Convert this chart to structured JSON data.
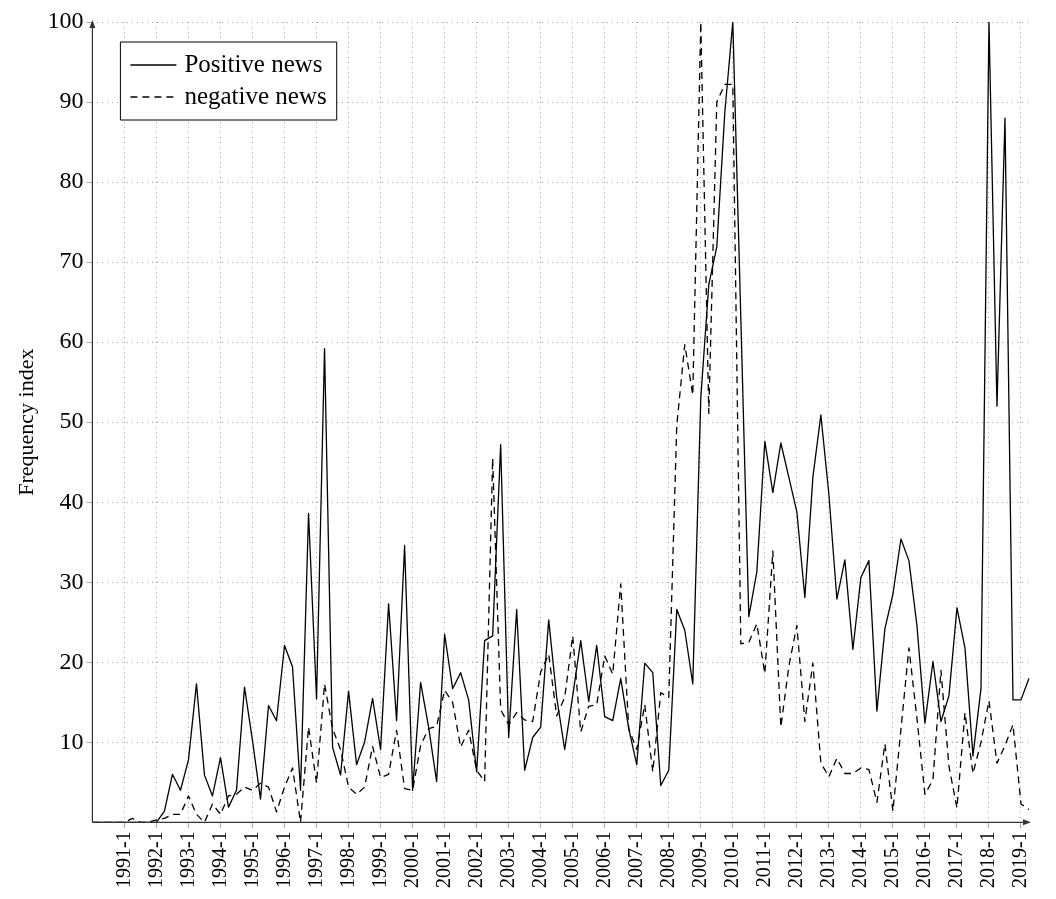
{
  "chart_data": {
    "type": "line",
    "ylabel": "Frequency index",
    "categories": [
      null,
      null,
      null,
      null,
      "1991-1",
      null,
      null,
      null,
      "1992-1",
      null,
      null,
      null,
      "1993-1",
      null,
      null,
      null,
      "1994-1",
      null,
      null,
      null,
      "1995-1",
      null,
      null,
      null,
      "1996-1",
      null,
      null,
      null,
      "1997-1",
      null,
      null,
      null,
      "1998-1",
      null,
      null,
      null,
      "1999-1",
      null,
      null,
      null,
      "2000-1",
      null,
      null,
      null,
      "2001-1",
      null,
      null,
      null,
      "2002-1",
      null,
      null,
      null,
      "2003-1",
      null,
      null,
      null,
      "2004-1",
      null,
      null,
      null,
      "2005-1",
      null,
      null,
      null,
      "2006-1",
      null,
      null,
      null,
      "2007-1",
      null,
      null,
      null,
      "2008-1",
      null,
      null,
      null,
      "2009-1",
      null,
      null,
      null,
      "2010-1",
      null,
      null,
      null,
      "2011-1",
      null,
      null,
      null,
      "2012-1",
      null,
      null,
      null,
      "2013-1",
      null,
      null,
      null,
      "2014-1",
      null,
      null,
      null,
      "2015-1",
      null,
      null,
      null,
      "2016-1",
      null,
      null,
      null,
      "2017-1",
      null,
      null,
      null,
      "2018-1",
      null,
      null,
      null,
      "2019-1",
      null
    ],
    "series": [
      {
        "name": "Positive news",
        "color": "#000000",
        "line_style": "solid",
        "values": [
          0,
          0,
          0,
          0,
          0,
          0,
          0,
          0,
          0,
          1.4,
          6.0,
          4.0,
          7.8,
          17.3,
          5.9,
          3.3,
          8.1,
          1.9,
          4.0,
          16.9,
          10.2,
          2.9,
          14.6,
          12.7,
          22.1,
          19.4,
          4.0,
          38.6,
          15.4,
          59.2,
          9.4,
          5.9,
          16.4,
          7.2,
          10.0,
          15.5,
          9.1,
          27.3,
          12.7,
          34.6,
          4.0,
          17.5,
          11.9,
          5.1,
          23.5,
          16.7,
          18.7,
          15.3,
          6.3,
          22.7,
          23.3,
          47.2,
          10.6,
          26.6,
          6.5,
          10.6,
          11.9,
          25.3,
          15.6,
          9.1,
          15.8,
          22.7,
          15.1,
          22.1,
          13.2,
          12.7,
          18.0,
          11.7,
          7.2,
          19.9,
          18.7,
          4.6,
          6.5,
          26.6,
          24.0,
          17.3,
          53,
          67.2,
          71.9,
          88.7,
          100,
          63,
          25.7,
          31.3,
          47.6,
          41.2,
          47.4,
          43.1,
          38.8,
          28.1,
          43.1,
          50.9,
          41,
          27.9,
          32.8,
          21.6,
          30.6,
          32.7,
          13.9,
          24.2,
          28.5,
          35.4,
          32.7,
          24.6,
          12.4,
          20.1,
          12.6,
          15.8,
          26.8,
          21.8,
          8.3,
          16.7,
          100,
          52,
          88,
          15.3,
          15.3,
          18
        ]
      },
      {
        "name": "negative news",
        "color": "#000000",
        "line_style": "dashed",
        "values": [
          0,
          0,
          0,
          0,
          0,
          0.5,
          0,
          0,
          0.3,
          0.5,
          1.0,
          1.0,
          3.3,
          1.0,
          0,
          2.3,
          1.0,
          3.3,
          3.5,
          4.4,
          4.0,
          4.9,
          4.4,
          1.3,
          4.4,
          6.8,
          0,
          11.9,
          4.9,
          17.3,
          11.7,
          9.1,
          4.4,
          3.5,
          4.4,
          9.5,
          5.6,
          6.0,
          11.5,
          4.2,
          4.0,
          9.6,
          11.7,
          12,
          16.5,
          15,
          9.4,
          11.5,
          6.5,
          5.1,
          45.5,
          14.1,
          12.2,
          13.7,
          12.8,
          12.6,
          18.8,
          21.0,
          13.3,
          15.6,
          23.3,
          11.3,
          14.5,
          14.7,
          20.8,
          18.5,
          29.8,
          11.7,
          9.1,
          14.7,
          6.3,
          16.2,
          15.6,
          49.6,
          59.7,
          53.4,
          100,
          51.1,
          90.0,
          92.2,
          92.2,
          22.3,
          22.5,
          24.8,
          18.6,
          33.9,
          11.9,
          19.5,
          24.6,
          12.6,
          19.9,
          7.4,
          5.7,
          8.0,
          6.1,
          6.1,
          6.8,
          6.6,
          2.5,
          9.8,
          1.4,
          11.6,
          21.8,
          13.0,
          3.5,
          5.3,
          19.0,
          7.0,
          1.8,
          13.7,
          6.1,
          10.0,
          15.2,
          7.4,
          9.6,
          12.2,
          2.3,
          1.6
        ]
      }
    ],
    "ylim": [
      0,
      100
    ],
    "yticks": [
      10,
      20,
      30,
      40,
      50,
      60,
      70,
      80,
      90,
      100
    ],
    "grid": true,
    "legend": "top left",
    "marker": "none"
  }
}
